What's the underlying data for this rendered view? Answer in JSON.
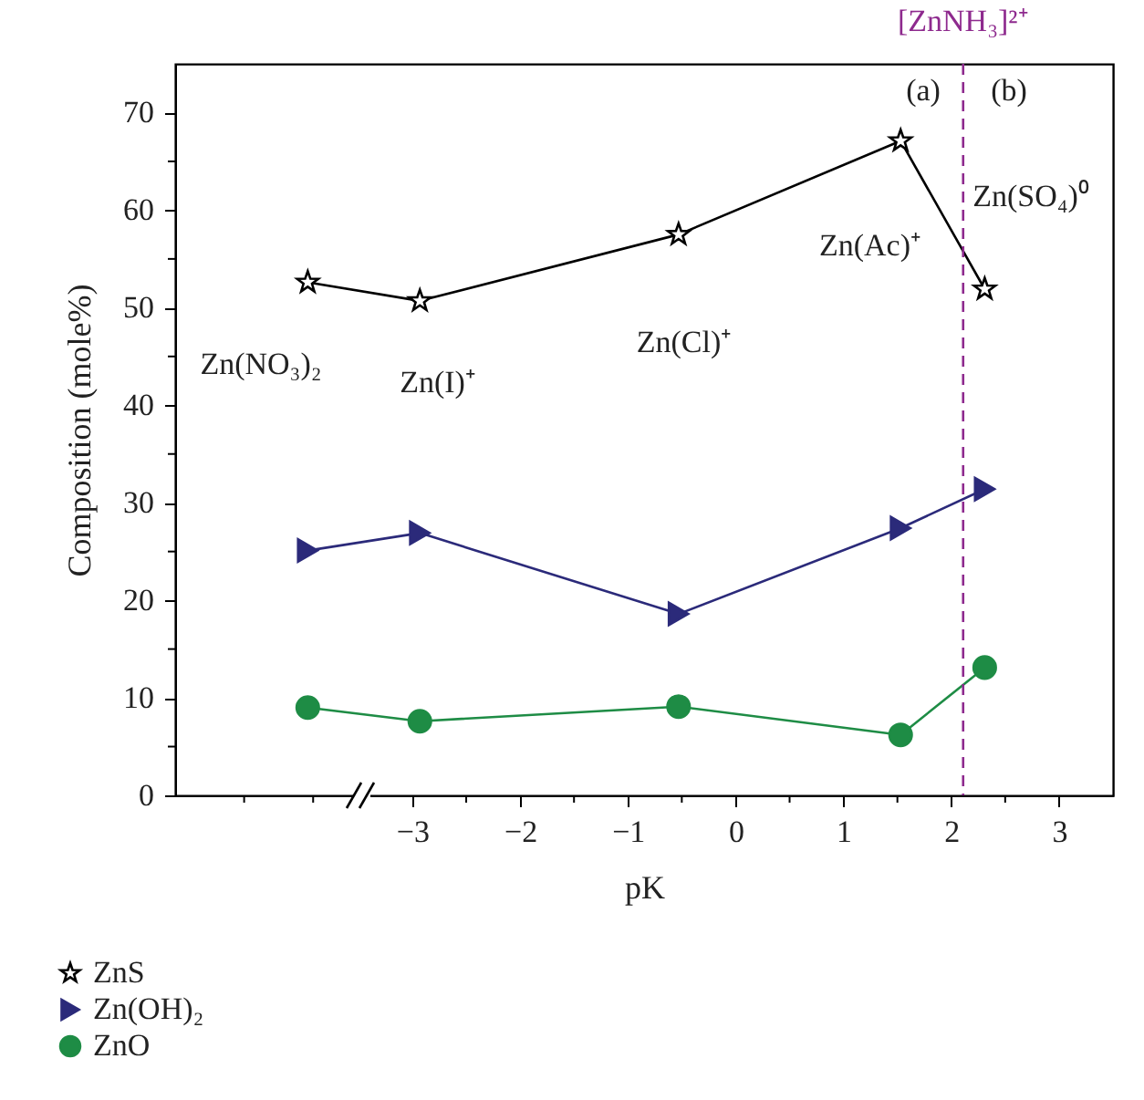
{
  "chart_data": {
    "type": "line",
    "xlabel": "pK",
    "ylabel": "Composition (mole%)",
    "xlim": [
      -5.2,
      3.5
    ],
    "xticks": [
      {
        "value": -4.56,
        "label": null
      },
      {
        "value": -3.92,
        "label": null
      },
      {
        "value": -3,
        "label": "−3"
      },
      {
        "value": -2.5,
        "label": null
      },
      {
        "value": -2,
        "label": "−2"
      },
      {
        "value": -1.5,
        "label": null
      },
      {
        "value": -1,
        "label": "−1"
      },
      {
        "value": -0.5,
        "label": null
      },
      0,
      {
        "value": 0.5,
        "label": null
      },
      1,
      {
        "value": 1.5,
        "label": null
      },
      2,
      {
        "value": 2.5,
        "label": null
      },
      3
    ],
    "ylim": [
      0,
      75
    ],
    "yticks": [
      0,
      {
        "value": 5,
        "label": null
      },
      10,
      {
        "value": 15,
        "label": null
      },
      20,
      {
        "value": 25,
        "label": null
      },
      30,
      {
        "value": 35,
        "label": null
      },
      40,
      {
        "value": 45,
        "label": null
      },
      50,
      {
        "value": 55,
        "label": null
      },
      60,
      {
        "value": 65,
        "label": null
      },
      70
    ],
    "x": [
      -3.97,
      -2.93,
      -0.53,
      1.53,
      2.31
    ],
    "series": [
      {
        "name": "ZnS",
        "color": "#000000",
        "marker": "star",
        "values": [
          52.6,
          50.7,
          57.5,
          67.1,
          51.9
        ]
      },
      {
        "name": "Zn(OH)₂",
        "color": "#2b2a7a",
        "marker": "triangle",
        "values": [
          25.1,
          26.9,
          18.6,
          27.4,
          31.4
        ]
      },
      {
        "name": "ZnO",
        "color": "#1e8c45",
        "marker": "circle",
        "values": [
          9.0,
          7.6,
          9.1,
          6.2,
          13.1
        ]
      }
    ],
    "ref_lines": [
      {
        "axis": "x",
        "value": 2.11,
        "label": "[ZnNH₃]²⁺",
        "color": "#8e2a8e",
        "line_style": "dashed"
      }
    ],
    "annotations": [
      "Zn(NO₃)₂",
      "Zn(I)⁺",
      "Zn(Cl)⁺",
      "Zn(Ac)⁺",
      "Zn(SO₄)⁰",
      "(a)",
      "(b)"
    ],
    "grid": false,
    "legend": "bottom left",
    "line_style": "solid"
  }
}
